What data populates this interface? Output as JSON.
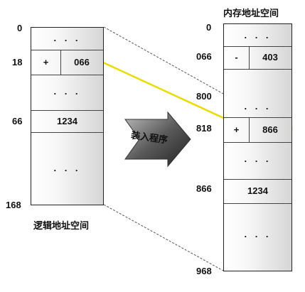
{
  "logical": {
    "caption": "逻辑地址空间",
    "addresses": {
      "a0": "0",
      "a18": "18",
      "a66": "66",
      "a168": "168"
    },
    "cells": {
      "top": ". . .",
      "op": "+",
      "value": "066",
      "mid": ". . .",
      "data": "1234",
      "bottom": ". . ."
    }
  },
  "physical": {
    "title": "内存地址空间",
    "addresses": {
      "a0": "0",
      "a066": "066",
      "a800": "800",
      "a818": "818",
      "a866": "866",
      "a968": "968"
    },
    "cells": {
      "top": ". . .",
      "op1": "-",
      "val1": "403",
      "mid1": ". . .",
      "op2": "+",
      "val2": "866",
      "mid2": ". . .",
      "data": "1234",
      "bottom": ". . ."
    }
  },
  "loader_label": "装入程序",
  "colors": {
    "highlight": "#f2e600",
    "arrow_fill": "#444444",
    "column_edge": "#cfcfcf"
  }
}
